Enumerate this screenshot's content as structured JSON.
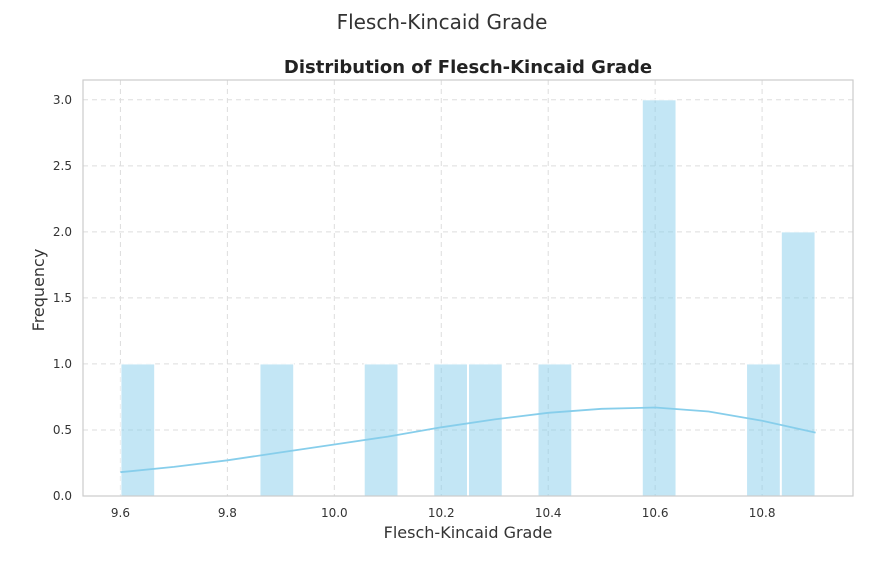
{
  "page": {
    "title": "Flesch-Kincaid Grade"
  },
  "chart_data": {
    "type": "bar",
    "title": "Distribution of Flesch-Kincaid Grade",
    "xlabel": "Flesch-Kincaid Grade",
    "ylabel": "Frequency",
    "xlim": [
      9.53,
      10.97
    ],
    "ylim": [
      0,
      3.15
    ],
    "xticks": [
      "9.6",
      "9.8",
      "10.0",
      "10.2",
      "10.4",
      "10.6",
      "10.8"
    ],
    "xtick_values": [
      9.6,
      9.8,
      10.0,
      10.2,
      10.4,
      10.6,
      10.8
    ],
    "yticks": [
      "0.0",
      "0.5",
      "1.0",
      "1.5",
      "2.0",
      "2.5",
      "3.0"
    ],
    "ytick_values": [
      0,
      0.5,
      1.0,
      1.5,
      2.0,
      2.5,
      3.0
    ],
    "grid": true,
    "bins": [
      {
        "x0": 9.6,
        "x1": 9.665,
        "count": 1
      },
      {
        "x0": 9.665,
        "x1": 9.73,
        "count": 0
      },
      {
        "x0": 9.73,
        "x1": 9.795,
        "count": 0
      },
      {
        "x0": 9.795,
        "x1": 9.86,
        "count": 0
      },
      {
        "x0": 9.86,
        "x1": 9.925,
        "count": 1
      },
      {
        "x0": 9.925,
        "x1": 9.99,
        "count": 0
      },
      {
        "x0": 9.99,
        "x1": 10.055,
        "count": 0
      },
      {
        "x0": 10.055,
        "x1": 10.12,
        "count": 1
      },
      {
        "x0": 10.12,
        "x1": 10.185,
        "count": 0
      },
      {
        "x0": 10.185,
        "x1": 10.25,
        "count": 1
      },
      {
        "x0": 10.25,
        "x1": 10.315,
        "count": 1
      },
      {
        "x0": 10.315,
        "x1": 10.38,
        "count": 0
      },
      {
        "x0": 10.38,
        "x1": 10.445,
        "count": 1
      },
      {
        "x0": 10.445,
        "x1": 10.51,
        "count": 0
      },
      {
        "x0": 10.51,
        "x1": 10.575,
        "count": 0
      },
      {
        "x0": 10.575,
        "x1": 10.64,
        "count": 3
      },
      {
        "x0": 10.64,
        "x1": 10.705,
        "count": 0
      },
      {
        "x0": 10.705,
        "x1": 10.77,
        "count": 0
      },
      {
        "x0": 10.77,
        "x1": 10.835,
        "count": 1
      },
      {
        "x0": 10.835,
        "x1": 10.9,
        "count": 2
      }
    ],
    "kde": {
      "x": [
        9.6,
        9.7,
        9.8,
        9.9,
        10.0,
        10.1,
        10.2,
        10.3,
        10.4,
        10.5,
        10.6,
        10.7,
        10.8,
        10.9
      ],
      "y": [
        0.18,
        0.22,
        0.27,
        0.33,
        0.39,
        0.45,
        0.52,
        0.58,
        0.63,
        0.66,
        0.67,
        0.64,
        0.57,
        0.48
      ]
    },
    "colors": {
      "bar": "#87CEEB",
      "kde": "#87CEEB",
      "grid": "#dddddd",
      "frame": "#cccccc"
    }
  }
}
